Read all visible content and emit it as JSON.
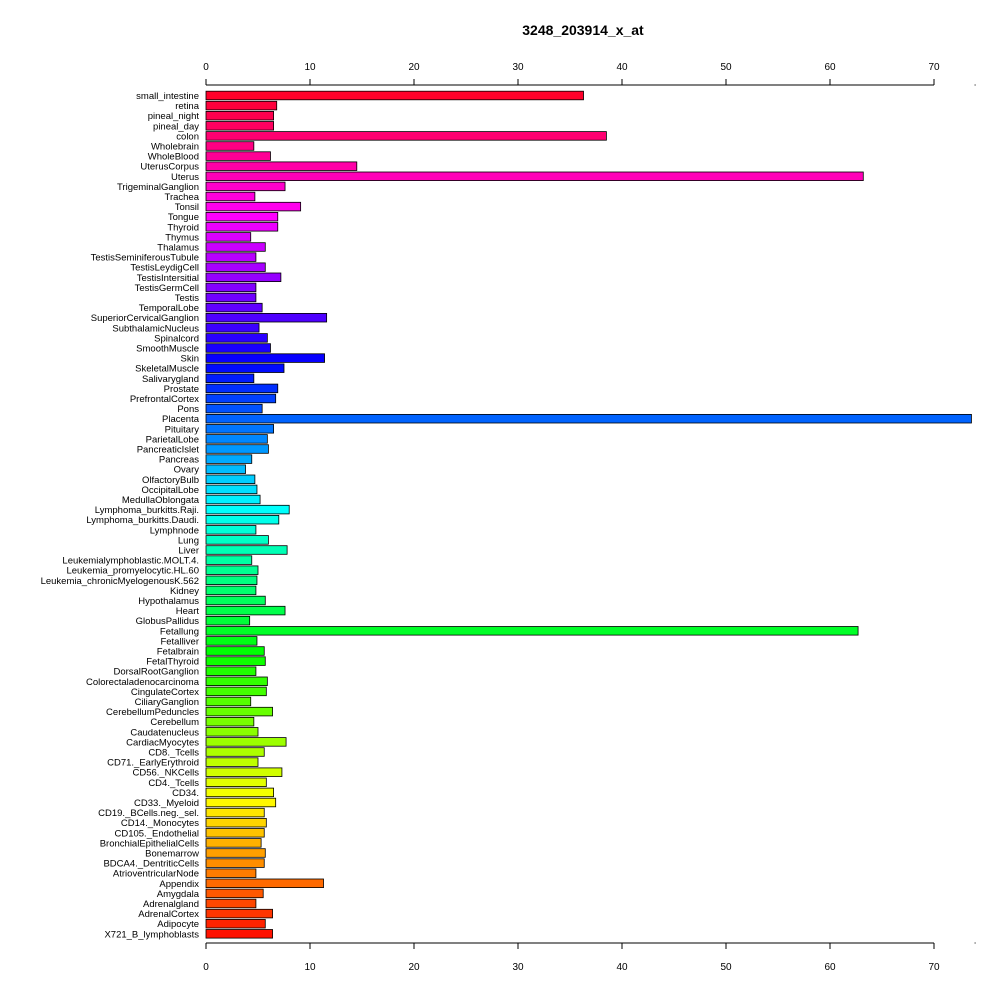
{
  "chart_data": {
    "type": "bar",
    "orientation": "horizontal",
    "title": "3248_203914_x_at",
    "xlabel": "",
    "ylabel": "",
    "xlim": [
      0,
      74
    ],
    "xticks": [
      0,
      10,
      20,
      30,
      40,
      50,
      60,
      70
    ],
    "grid": false,
    "axes": [
      "top",
      "bottom"
    ],
    "categories": [
      "small_intestine",
      "retina",
      "pineal_night",
      "pineal_day",
      "colon",
      "Wholebrain",
      "WholeBlood",
      "UterusCorpus",
      "Uterus",
      "TrigeminalGanglion",
      "Trachea",
      "Tonsil",
      "Tongue",
      "Thyroid",
      "Thymus",
      "Thalamus",
      "TestisSeminiferousTubule",
      "TestisLeydigCell",
      "TestisIntersitial",
      "TestisGermCell",
      "Testis",
      "TemporalLobe",
      "SuperiorCervicalGanglion",
      "SubthalamicNucleus",
      "Spinalcord",
      "SmoothMuscle",
      "Skin",
      "SkeletalMuscle",
      "Salivarygland",
      "Prostate",
      "PrefrontalCortex",
      "Pons",
      "Placenta",
      "Pituitary",
      "ParietalLobe",
      "PancreaticIslet",
      "Pancreas",
      "Ovary",
      "OlfactoryBulb",
      "OccipitalLobe",
      "MedullaOblongata",
      "Lymphoma_burkitts.Raji.",
      "Lymphoma_burkitts.Daudi.",
      "Lymphnode",
      "Lung",
      "Liver",
      "Leukemialymphoblastic.MOLT.4.",
      "Leukemia_promyelocytic.HL.60",
      "Leukemia_chronicMyelogenousK.562",
      "Kidney",
      "Hypothalamus",
      "Heart",
      "GlobusPallidus",
      "Fetallung",
      "Fetalliver",
      "Fetalbrain",
      "FetalThyroid",
      "DorsalRootGanglion",
      "Colorectaladenocarcinoma",
      "CingulateCortex",
      "CiliaryGanglion",
      "CerebellumPeduncles",
      "Cerebellum",
      "Caudatenucleus",
      "CardiacMyocytes",
      "CD8._Tcells",
      "CD71._EarlyErythroid",
      "CD56._NKCells",
      "CD4._Tcells",
      "CD34.",
      "CD33._Myeloid",
      "CD19._BCells.neg._sel.",
      "CD14._Monocytes",
      "CD105._Endothelial",
      "BronchialEpithelialCells",
      "Bonemarrow",
      "BDCA4._DentriticCells",
      "AtrioventricularNode",
      "Appendix",
      "Amygdala",
      "Adrenalgland",
      "AdrenalCortex",
      "Adipocyte",
      "X721_B_lymphoblasts"
    ],
    "values": [
      36.3,
      6.8,
      6.5,
      6.5,
      38.5,
      4.6,
      6.2,
      14.5,
      63.2,
      7.6,
      4.7,
      9.1,
      6.9,
      6.9,
      4.3,
      5.7,
      4.8,
      5.7,
      7.2,
      4.8,
      4.8,
      5.4,
      11.6,
      5.1,
      5.9,
      6.2,
      11.4,
      7.5,
      4.6,
      6.9,
      6.7,
      5.4,
      73.6,
      6.5,
      5.9,
      6.0,
      4.4,
      3.8,
      4.7,
      4.9,
      5.2,
      8.0,
      7.0,
      4.8,
      6.0,
      7.8,
      4.4,
      5.0,
      4.9,
      4.8,
      5.7,
      7.6,
      4.2,
      62.7,
      4.9,
      5.6,
      5.7,
      4.8,
      5.9,
      5.8,
      4.3,
      6.4,
      4.6,
      5.0,
      7.7,
      5.6,
      5.0,
      7.3,
      5.8,
      6.5,
      6.7,
      5.6,
      5.8,
      5.6,
      5.3,
      5.7,
      5.6,
      4.8,
      11.3,
      5.5,
      4.8,
      6.4,
      5.7,
      6.4
    ]
  }
}
